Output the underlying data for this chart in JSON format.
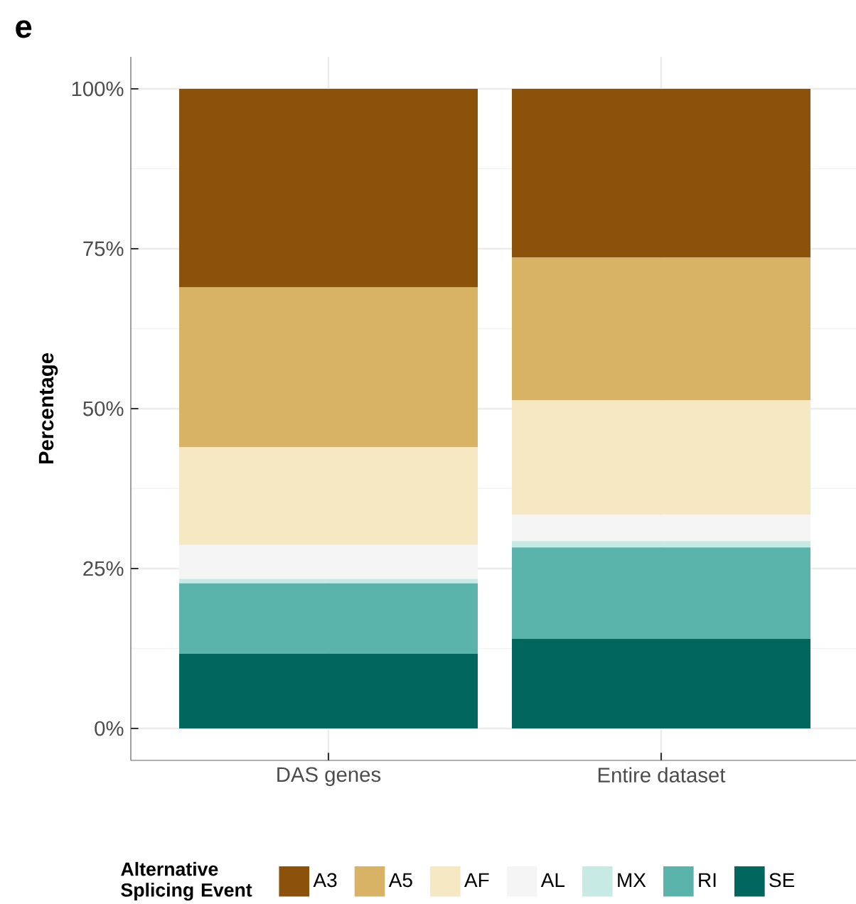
{
  "chart_data": {
    "type": "bar",
    "title": "e",
    "ylabel": "Percentage",
    "legend_title": "Alternative Splicing Event",
    "categories": [
      "DAS genes",
      "Entire dataset"
    ],
    "stacked": true,
    "series": [
      {
        "name": "SE",
        "color": "#01665e",
        "values": [
          11.7,
          14.0
        ]
      },
      {
        "name": "RI",
        "color": "#5ab4ac",
        "values": [
          11.0,
          14.3
        ]
      },
      {
        "name": "MX",
        "color": "#c7eae5",
        "values": [
          0.7,
          1.0
        ]
      },
      {
        "name": "AL",
        "color": "#f5f5f5",
        "values": [
          5.3,
          4.1
        ]
      },
      {
        "name": "AF",
        "color": "#f6e8c3",
        "values": [
          15.3,
          17.9
        ]
      },
      {
        "name": "A5",
        "color": "#d8b365",
        "values": [
          25.0,
          22.3
        ]
      },
      {
        "name": "A3",
        "color": "#8c510a",
        "values": [
          31.0,
          26.4
        ]
      }
    ],
    "ylim": [
      -5,
      105
    ],
    "yticks": [
      {
        "value": 0,
        "label": "0%"
      },
      {
        "value": 25,
        "label": "25%"
      },
      {
        "value": 50,
        "label": "50%"
      },
      {
        "value": 75,
        "label": "75%"
      },
      {
        "value": 100,
        "label": "100%"
      }
    ],
    "grid": true,
    "legend": "bottom"
  }
}
